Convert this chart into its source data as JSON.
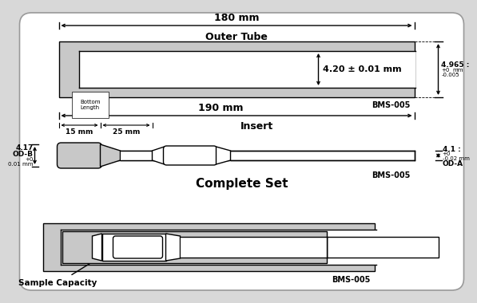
{
  "gray": "#c8c8c8",
  "white": "#ffffff",
  "black": "#000000",
  "lt_gray": "#e0e0e0",
  "outer_tube": {
    "length_label": "180 mm",
    "label": "Outer Tube",
    "inner_label": "4.20 ± 0.01 mm",
    "od_label": "4.965 :",
    "od_tol_hi": "+0",
    "od_tol_lo": "-0.005",
    "od_unit": "mm",
    "bms_label": "BMS-005",
    "bottom_label": "Bottom\nLength"
  },
  "insert": {
    "length_label": "190 mm",
    "label": "Insert",
    "seg1_label": "15 mm",
    "seg2_label": "25 mm",
    "odb_main": "4.17",
    "odb_sub": "OD-B",
    "odb_tol_hi": "+0",
    "odb_tol_lo": "0.01",
    "odb_unit": "mm",
    "oda_main": "4.1 :",
    "oda_tol_hi": "+0",
    "oda_tol_lo": "-0.02",
    "oda_unit": "mm",
    "oda_sub": "OD-A",
    "bms_label": "BMS-005",
    "complete_label": "Complete Set"
  },
  "assembly": {
    "sample_label": "Sample Capacity",
    "bms_label": "BMS-005"
  }
}
